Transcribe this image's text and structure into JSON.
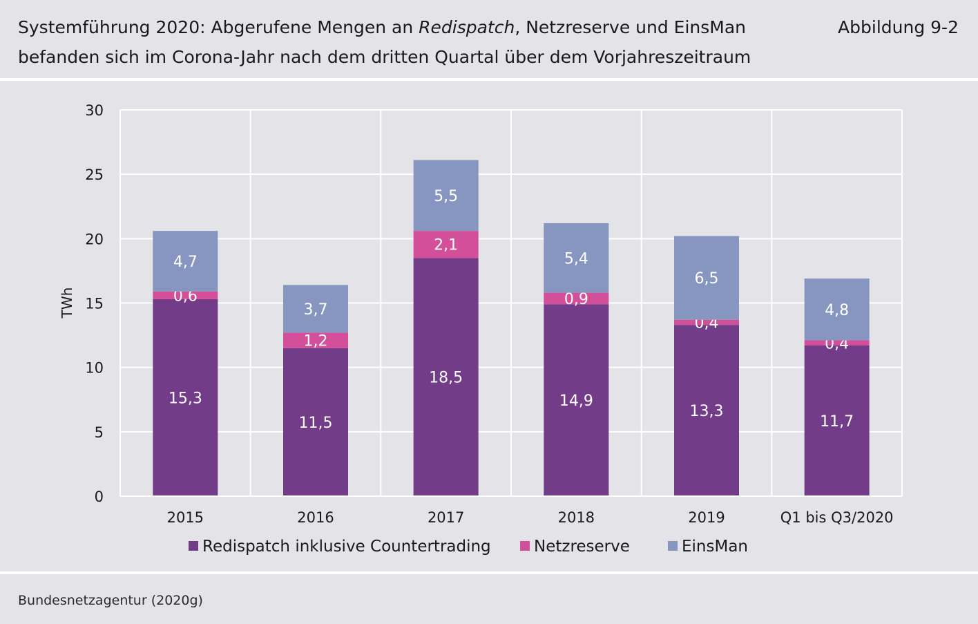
{
  "header": {
    "title_prefix": "Systemführung 2020: Abgerufene Mengen an ",
    "title_italic": "Redispatch",
    "title_line1_suffix": ", Netzreserve und EinsMan",
    "title_line2": "befanden sich im Corona-Jahr nach dem dritten Quartal über dem Vorjahreszeitraum",
    "figure_number": "Abbildung 9-2"
  },
  "chart_data": {
    "type": "bar",
    "stacked": true,
    "categories": [
      "2015",
      "2016",
      "2017",
      "2018",
      "2019",
      "Q1 bis Q3/2020"
    ],
    "series": [
      {
        "name": "Redispatch inklusive Countertrading",
        "color": "#733c88",
        "values": [
          15.3,
          11.5,
          18.5,
          14.9,
          13.3,
          11.7
        ],
        "labels": [
          "15,3",
          "11,5",
          "18,5",
          "14,9",
          "13,3",
          "11,7"
        ]
      },
      {
        "name": "Netzreserve",
        "color": "#d34f9a",
        "values": [
          0.6,
          1.2,
          2.1,
          0.9,
          0.4,
          0.4
        ],
        "labels": [
          "0,6",
          "1,2",
          "2,1",
          "0,9",
          "0,4",
          "0,4"
        ]
      },
      {
        "name": "EinsMan",
        "color": "#8795c1",
        "values": [
          4.7,
          3.7,
          5.5,
          5.4,
          6.5,
          4.8
        ],
        "labels": [
          "4,7",
          "3,7",
          "5,5",
          "5,4",
          "6,5",
          "4,8"
        ]
      }
    ],
    "ylabel": "TWh",
    "ylim": [
      0,
      30
    ],
    "yticks": [
      0,
      5,
      10,
      15,
      20,
      25,
      30
    ],
    "grid": true,
    "legend_position": "bottom"
  },
  "source": "Bundesnetzagentur (2020g)"
}
